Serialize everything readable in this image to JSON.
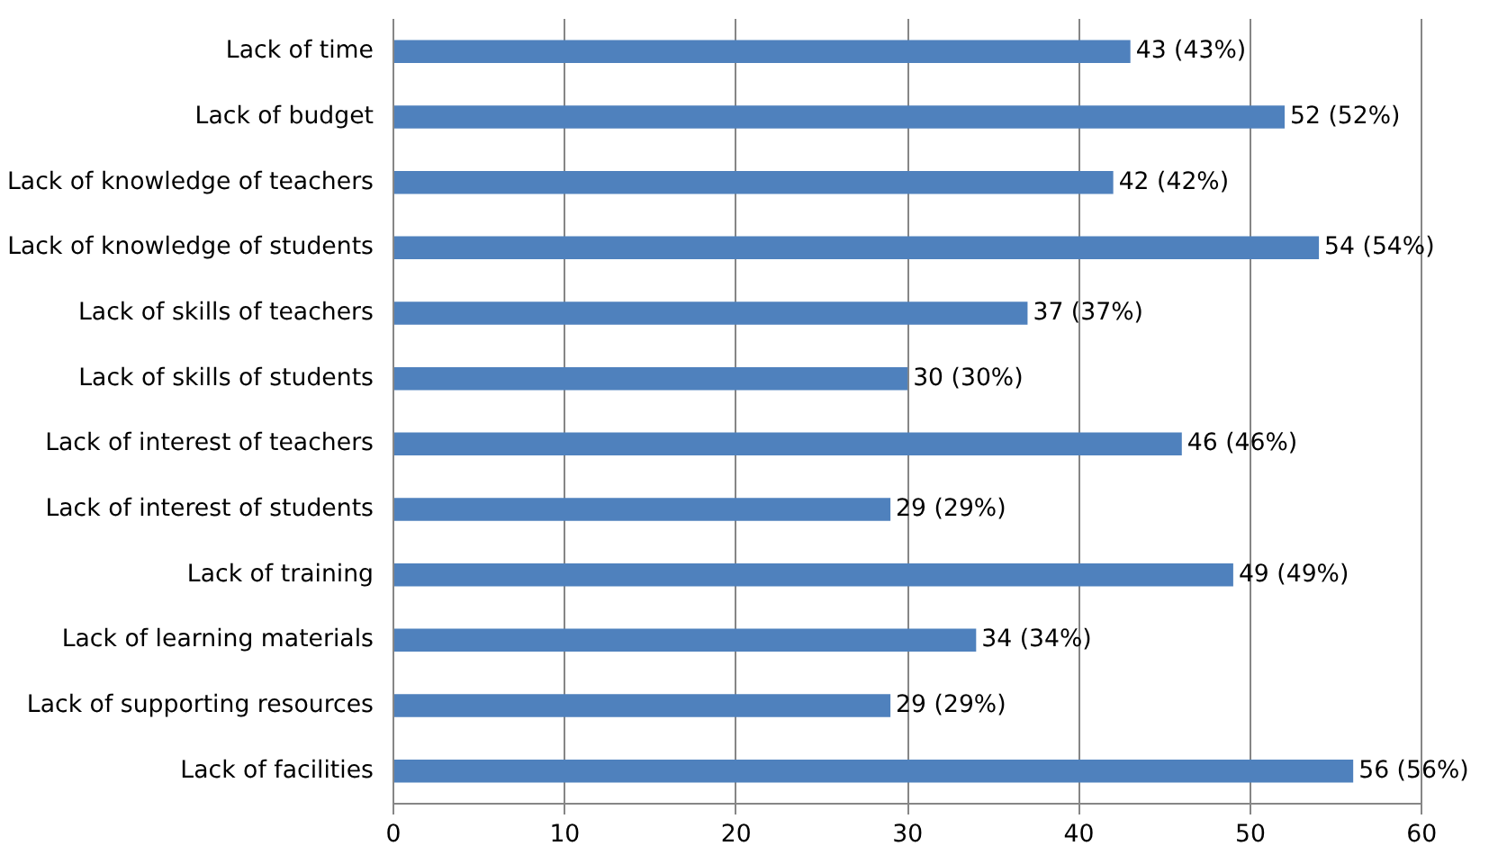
{
  "chart_data": {
    "type": "bar",
    "orientation": "horizontal",
    "categories": [
      "Lack of time",
      "Lack of budget",
      "Lack of knowledge of teachers",
      "Lack of knowledge of students",
      "Lack of skills of teachers",
      "Lack of skills of students",
      "Lack of interest of teachers",
      "Lack of interest of students",
      "Lack of training",
      "Lack of learning materials",
      "Lack of supporting resources",
      "Lack of facilities"
    ],
    "values": [
      43,
      52,
      42,
      54,
      37,
      30,
      46,
      29,
      49,
      34,
      29,
      56
    ],
    "value_labels": [
      "43 (43%)",
      "52 (52%)",
      "42 (42%)",
      "54 (54%)",
      "37 (37%)",
      "30 (30%)",
      "46 (46%)",
      "29 (29%)",
      "49 (49%)",
      "34 (34%)",
      "29 (29%)",
      "56 (56%)"
    ],
    "color": "#4f81bd",
    "xlim": [
      0,
      60
    ],
    "xticks": [
      0,
      10,
      20,
      30,
      40,
      50,
      60
    ],
    "grid": "x"
  }
}
